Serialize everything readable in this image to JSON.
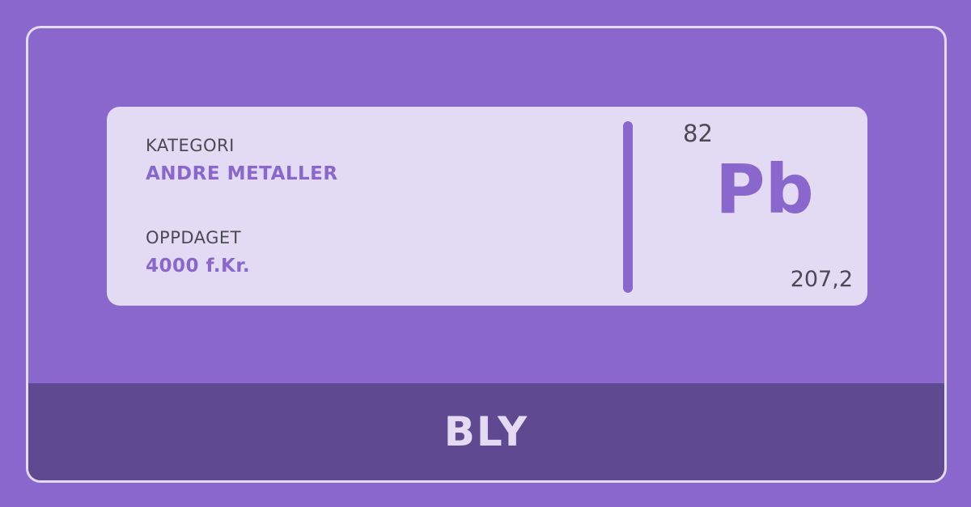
{
  "element": {
    "category_label": "KATEGORI",
    "category_value": "ANDRE METALLER",
    "discovered_label": "OPPDAGET",
    "discovered_value": "4000 f.Kr.",
    "atomic_number": "82",
    "symbol": "Pb",
    "atomic_mass": "207,2",
    "name": "BLY"
  },
  "colors": {
    "background": "#8a67cd",
    "card": "#e3daf3",
    "accent": "#8a67cd",
    "name_bar": "#5f4a91",
    "text_dark": "#4a4a55",
    "text_light": "#e4dbf3"
  }
}
